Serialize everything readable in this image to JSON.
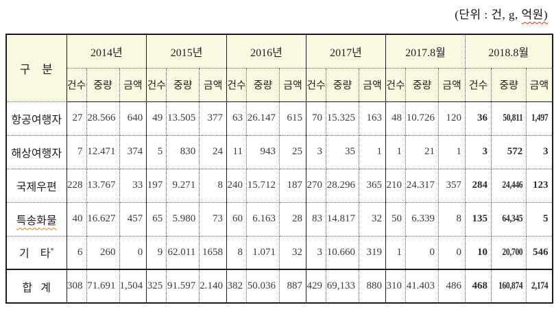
{
  "unit": {
    "prefix": "(단위 : 건, g, ",
    "wavy": "억원)"
  },
  "colors": {
    "header_bg": "#fcf9e3",
    "border": "#1a1a1a",
    "spellcheck_orange": "#e07c00",
    "spellcheck_red": "#d93025"
  },
  "table": {
    "corner_label": "구   분",
    "col_groups": [
      {
        "label": "2014년"
      },
      {
        "label": "2015년"
      },
      {
        "label": "2016년"
      },
      {
        "label": "2017년"
      },
      {
        "label": "2017.8월"
      },
      {
        "label": "2018.8월"
      }
    ],
    "sub_headers": [
      "건수",
      "중량",
      "금액"
    ],
    "rows": [
      {
        "label": "항공여행자",
        "values": [
          "27",
          "28.566",
          "640",
          "49",
          "13.505",
          "377",
          "63",
          "26.147",
          "615",
          "70",
          "15.325",
          "163",
          "48",
          "10.726",
          "120",
          "36",
          "50,811",
          "1,497"
        ]
      },
      {
        "label": "해상여행자",
        "values": [
          "7",
          "12.471",
          "374",
          "5",
          "830",
          "24",
          "11",
          "943",
          "25",
          "3",
          "35",
          "1",
          "1",
          "21",
          "1",
          "3",
          "572",
          "3"
        ]
      },
      {
        "label": "국제우편",
        "values": [
          "228",
          "13.767",
          "33",
          "197",
          "9.271",
          "8",
          "240",
          "15.712",
          "187",
          "270",
          "28.296",
          "365",
          "210",
          "24.317",
          "357",
          "284",
          "24,446",
          "123"
        ]
      },
      {
        "label": "특송화물",
        "wavy_underline": true,
        "values": [
          "40",
          "16.627",
          "457",
          "65",
          "5.980",
          "73",
          "60",
          "6.163",
          "28",
          "83",
          "14.817",
          "32",
          "50",
          "6.339",
          "8",
          "135",
          "64,345",
          "5"
        ]
      },
      {
        "label": "기    타",
        "label_sup": "*",
        "values": [
          "6",
          "260",
          "0",
          "9",
          "62.011",
          "1658",
          "8",
          "1.071",
          "32",
          "3",
          "10.660",
          "319",
          "1",
          "0",
          "0",
          "10",
          "20,700",
          "546"
        ]
      },
      {
        "label": "합   계",
        "is_total": true,
        "values": [
          "308",
          "71.691",
          "1,504",
          "325",
          "91.597",
          "2.140",
          "382",
          "50.036",
          "887",
          "429",
          "69,133",
          "880",
          "310",
          "41.403",
          "486",
          "468",
          "160,874",
          "2,174"
        ]
      }
    ]
  }
}
